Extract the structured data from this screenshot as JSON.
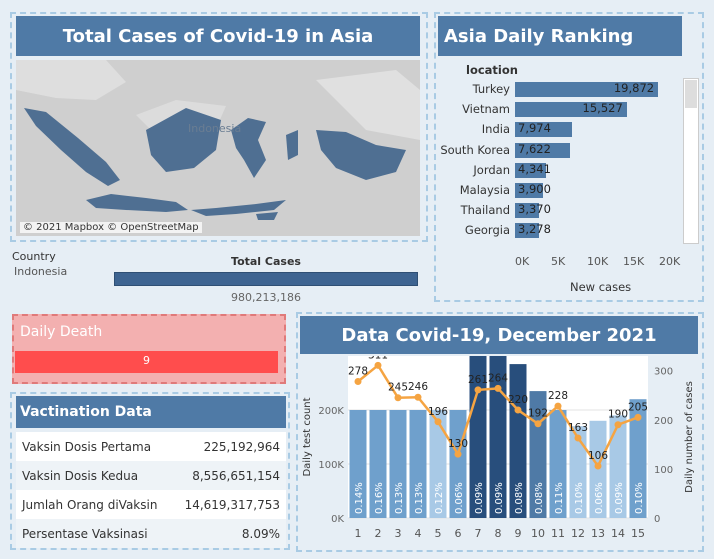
{
  "map_panel": {
    "title": "Total Cases of Covid-19 in Asia",
    "map_label": "Indonesia",
    "credit": "© 2021 Mapbox © OpenStreetMap",
    "country_header": "Country",
    "country_value": "Indonesia",
    "total_header": "Total Cases",
    "total_value": "980,213,186"
  },
  "ranking": {
    "title": "Asia Daily Ranking",
    "location_header": "location",
    "xlabel": "New cases",
    "ticks": [
      "0K",
      "5K",
      "10K",
      "15K",
      "20K"
    ],
    "rows": [
      {
        "label": "Turkey",
        "value": 19872,
        "text": "19,872"
      },
      {
        "label": "Vietnam",
        "value": 15527,
        "text": "15,527"
      },
      {
        "label": "India",
        "value": 7974,
        "text": "7,974"
      },
      {
        "label": "South Korea",
        "value": 7622,
        "text": "7,622"
      },
      {
        "label": "Jordan",
        "value": 4341,
        "text": "4,341"
      },
      {
        "label": "Malaysia",
        "value": 3900,
        "text": "3,900"
      },
      {
        "label": "Thailand",
        "value": 3370,
        "text": "3,370"
      },
      {
        "label": "Georgia",
        "value": 3278,
        "text": "3,278"
      }
    ]
  },
  "daily_death": {
    "title": "Daily Death",
    "value": "9"
  },
  "vaccination": {
    "title": "Vactination Data",
    "rows": [
      {
        "label": "Vaksin Dosis Pertama",
        "value": "225,192,964"
      },
      {
        "label": "Vaksin Dosis Kedua",
        "value": "8,556,651,154"
      },
      {
        "label": "Jumlah Orang diVaksin",
        "value": "14,619,317,753"
      },
      {
        "label": "Persentase Vaksinasi",
        "value": "8.09%"
      }
    ]
  },
  "december": {
    "title": "Data Covid-19, December 2021"
  },
  "chart_data": {
    "type": "bar",
    "x": [
      1,
      2,
      3,
      4,
      5,
      6,
      7,
      8,
      9,
      10,
      11,
      12,
      13,
      14,
      15
    ],
    "series": [
      {
        "name": "Daily test count",
        "type": "bar",
        "values": [
          200000,
          200000,
          200000,
          200000,
          200000,
          200000,
          300000,
          300000,
          285000,
          235000,
          200000,
          170000,
          180000,
          190000,
          220000
        ]
      },
      {
        "name": "Daily number of cases",
        "type": "line",
        "values": [
          278,
          311,
          245,
          246,
          196,
          130,
          261,
          264,
          220,
          192,
          228,
          163,
          106,
          190,
          205
        ]
      }
    ],
    "bar_labels": [
      "0.14%",
      "0.16%",
      "0.13%",
      "0.13%",
      "0.12%",
      "0.06%",
      "0.09%",
      "0.09%",
      "0.08%",
      "0.08%",
      "0.11%",
      "0.10%",
      "0.06%",
      "0.09%",
      "0.10%"
    ],
    "bar_colors": [
      "#6fa0cc",
      "#6fa0cc",
      "#6fa0cc",
      "#6fa0cc",
      "#a8c9e6",
      "#6fa0cc",
      "#284e7c",
      "#284e7c",
      "#284e7c",
      "#4f7aa6",
      "#6fa0cc",
      "#a8c9e6",
      "#a8c9e6",
      "#a8c9e6",
      "#6fa0cc"
    ],
    "line_color": "#f5a442",
    "ylabel": "Daily test count",
    "y2label": "Daily number of cases",
    "ylim": [
      0,
      300000
    ],
    "y2lim": [
      0,
      330
    ],
    "yticks": [
      "0K",
      "100K",
      "200K"
    ],
    "y2ticks": [
      "0",
      "100",
      "200",
      "300"
    ]
  }
}
